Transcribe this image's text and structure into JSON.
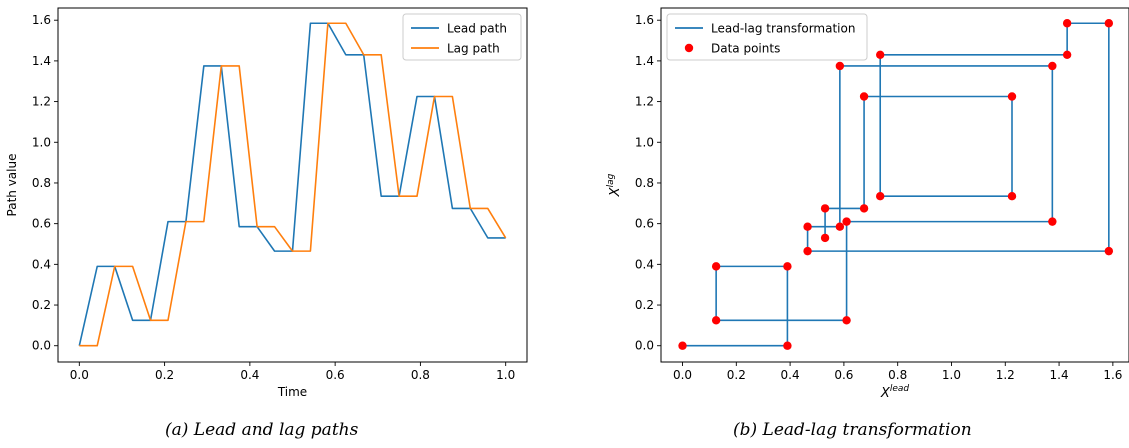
{
  "colors": {
    "lead": "#1f77b4",
    "lag": "#ff7f0e",
    "points": "#ff0000",
    "axes": "#000000"
  },
  "captions": {
    "a": "(a) Lead and lag paths",
    "b": "(b) Lead-lag transformation"
  },
  "chart_data": [
    {
      "type": "line",
      "title": "",
      "xlabel": "Time",
      "ylabel": "Path value",
      "xlim": [
        -0.05,
        1.05
      ],
      "ylim": [
        -0.08,
        1.66
      ],
      "xticks": [
        "0.0",
        "0.2",
        "0.4",
        "0.6",
        "0.8",
        "1.0"
      ],
      "yticks": [
        "0.0",
        "0.2",
        "0.4",
        "0.6",
        "0.8",
        "1.0",
        "1.2",
        "1.4",
        "1.6"
      ],
      "legend": "top-right",
      "grid": false,
      "series": [
        {
          "name": "Lead path",
          "x": [
            0.0,
            0.042,
            0.083,
            0.125,
            0.167,
            0.208,
            0.25,
            0.292,
            0.333,
            0.375,
            0.417,
            0.458,
            0.5,
            0.542,
            0.583,
            0.625,
            0.667,
            0.708,
            0.75,
            0.792,
            0.833,
            0.875,
            0.917,
            0.958,
            1.0
          ],
          "values": [
            0.0,
            0.39,
            0.39,
            0.125,
            0.125,
            0.61,
            0.61,
            1.375,
            1.375,
            0.585,
            0.585,
            0.465,
            0.465,
            1.585,
            1.585,
            1.43,
            1.43,
            0.735,
            0.735,
            1.225,
            1.225,
            0.675,
            0.675,
            0.53,
            0.53
          ]
        },
        {
          "name": "Lag path",
          "x": [
            0.0,
            0.042,
            0.083,
            0.125,
            0.167,
            0.208,
            0.25,
            0.292,
            0.333,
            0.375,
            0.417,
            0.458,
            0.5,
            0.542,
            0.583,
            0.625,
            0.667,
            0.708,
            0.75,
            0.792,
            0.833,
            0.875,
            0.917,
            0.958,
            1.0
          ],
          "values": [
            0.0,
            0.0,
            0.39,
            0.39,
            0.125,
            0.125,
            0.61,
            0.61,
            1.375,
            1.375,
            0.585,
            0.585,
            0.465,
            0.465,
            1.585,
            1.585,
            1.43,
            1.43,
            0.735,
            0.735,
            1.225,
            1.225,
            0.675,
            0.675,
            0.53
          ]
        }
      ]
    },
    {
      "type": "line",
      "title": "",
      "xlabel": "X",
      "xlabel_sup": "lead",
      "ylabel": "X",
      "ylabel_sup": "lag",
      "xlim": [
        -0.08,
        1.66
      ],
      "ylim": [
        -0.08,
        1.66
      ],
      "xticks": [
        "0.0",
        "0.2",
        "0.4",
        "0.6",
        "0.8",
        "1.0",
        "1.2",
        "1.4",
        "1.6"
      ],
      "yticks": [
        "0.0",
        "0.2",
        "0.4",
        "0.6",
        "0.8",
        "1.0",
        "1.2",
        "1.4",
        "1.6"
      ],
      "legend": "top-left",
      "grid": false,
      "series": [
        {
          "name": "Lead-lag transformation",
          "x": [
            0.0,
            0.39,
            0.39,
            0.125,
            0.125,
            0.61,
            0.61,
            1.375,
            1.375,
            0.585,
            0.585,
            0.465,
            0.465,
            1.585,
            1.585,
            1.43,
            1.43,
            0.735,
            0.735,
            1.225,
            1.225,
            0.675,
            0.675,
            0.53,
            0.53
          ],
          "values": [
            0.0,
            0.0,
            0.39,
            0.39,
            0.125,
            0.125,
            0.61,
            0.61,
            1.375,
            1.375,
            0.585,
            0.585,
            0.465,
            0.465,
            1.585,
            1.585,
            1.43,
            1.43,
            0.735,
            0.735,
            1.225,
            1.225,
            0.675,
            0.675,
            0.53
          ]
        },
        {
          "name": "Data points",
          "kind": "scatter",
          "x": [
            0.0,
            0.39,
            0.39,
            0.125,
            0.125,
            0.61,
            0.61,
            1.375,
            1.375,
            0.585,
            0.585,
            0.465,
            0.465,
            1.585,
            1.585,
            1.43,
            1.43,
            0.735,
            0.735,
            1.225,
            1.225,
            0.675,
            0.675,
            0.53,
            0.53
          ],
          "values": [
            0.0,
            0.0,
            0.39,
            0.39,
            0.125,
            0.125,
            0.61,
            0.61,
            1.375,
            1.375,
            0.585,
            0.585,
            0.465,
            0.465,
            1.585,
            1.585,
            1.43,
            1.43,
            0.735,
            0.735,
            1.225,
            1.225,
            0.675,
            0.675,
            0.53
          ]
        }
      ]
    }
  ]
}
